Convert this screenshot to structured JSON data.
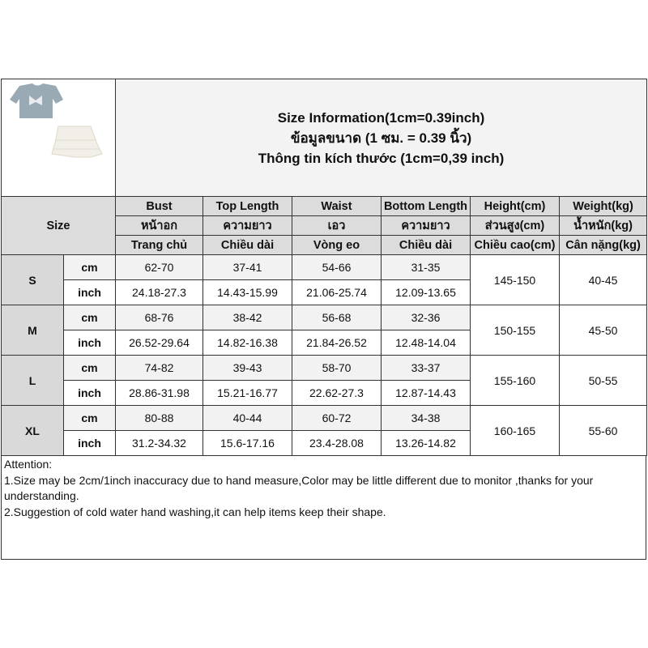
{
  "title_lines": [
    "Size Information(1cm=0.39inch)",
    "ข้อมูลขนาด (1 ซม. = 0.39 นิ้ว)",
    "Thông tin kích thước (1cm=0,39 inch)"
  ],
  "size_header": "Size",
  "columns": [
    {
      "en": "Bust",
      "th": "หน้าอก",
      "vi": "Trang chủ"
    },
    {
      "en": "Top Length",
      "th": "ความยาว",
      "vi": "Chiều dài"
    },
    {
      "en": "Waist",
      "th": "เอว",
      "vi": "Vòng eo"
    },
    {
      "en": "Bottom Length",
      "th": "ความยาว",
      "vi": "Chiều dài"
    },
    {
      "en": "Height(cm)",
      "th": "ส่วนสูง(cm)",
      "vi": "Chiều cao(cm)"
    },
    {
      "en": "Weight(kg)",
      "th": "น้ำหนัก(kg)",
      "vi": "Cân nặng(kg)"
    }
  ],
  "sizes": [
    {
      "size": "S",
      "cm_label": "cm",
      "inch_label": "inch",
      "cm": [
        "62-70",
        "37-41",
        "54-66",
        "31-35"
      ],
      "inch": [
        "24.18-27.3",
        "14.43-15.99",
        "21.06-25.74",
        "12.09-13.65"
      ],
      "height": "145-150",
      "weight": "40-45"
    },
    {
      "size": "M",
      "cm_label": "cm",
      "inch_label": "inch",
      "cm": [
        "68-76",
        "38-42",
        "56-68",
        "32-36"
      ],
      "inch": [
        "26.52-29.64",
        "14.82-16.38",
        "21.84-26.52",
        "12.48-14.04"
      ],
      "height": "150-155",
      "weight": "45-50"
    },
    {
      "size": "L",
      "cm_label": "cm",
      "inch_label": "inch",
      "cm": [
        "74-82",
        "39-43",
        "58-70",
        "33-37"
      ],
      "inch": [
        "28.86-31.98",
        "15.21-16.77",
        "22.62-27.3",
        "12.87-14.43"
      ],
      "height": "155-160",
      "weight": "50-55"
    },
    {
      "size": "XL",
      "cm_label": "cm",
      "inch_label": "inch",
      "cm": [
        "80-88",
        "40-44",
        "60-72",
        "34-38"
      ],
      "inch": [
        "31.2-34.32",
        "15.6-17.16",
        "23.4-28.08",
        "13.26-14.82"
      ],
      "height": "160-165",
      "weight": "55-60"
    }
  ],
  "attention": [
    "Attention:",
    "1.Size may be 2cm/1inch inaccuracy due to hand measure,Color may be little different due to monitor ,thanks for your understanding.",
    "2.Suggestion of cold water hand washing,it can help items keep their shape."
  ],
  "product_images": [
    "blue-tshirt-with-bow",
    "white-tiered-skirt"
  ]
}
